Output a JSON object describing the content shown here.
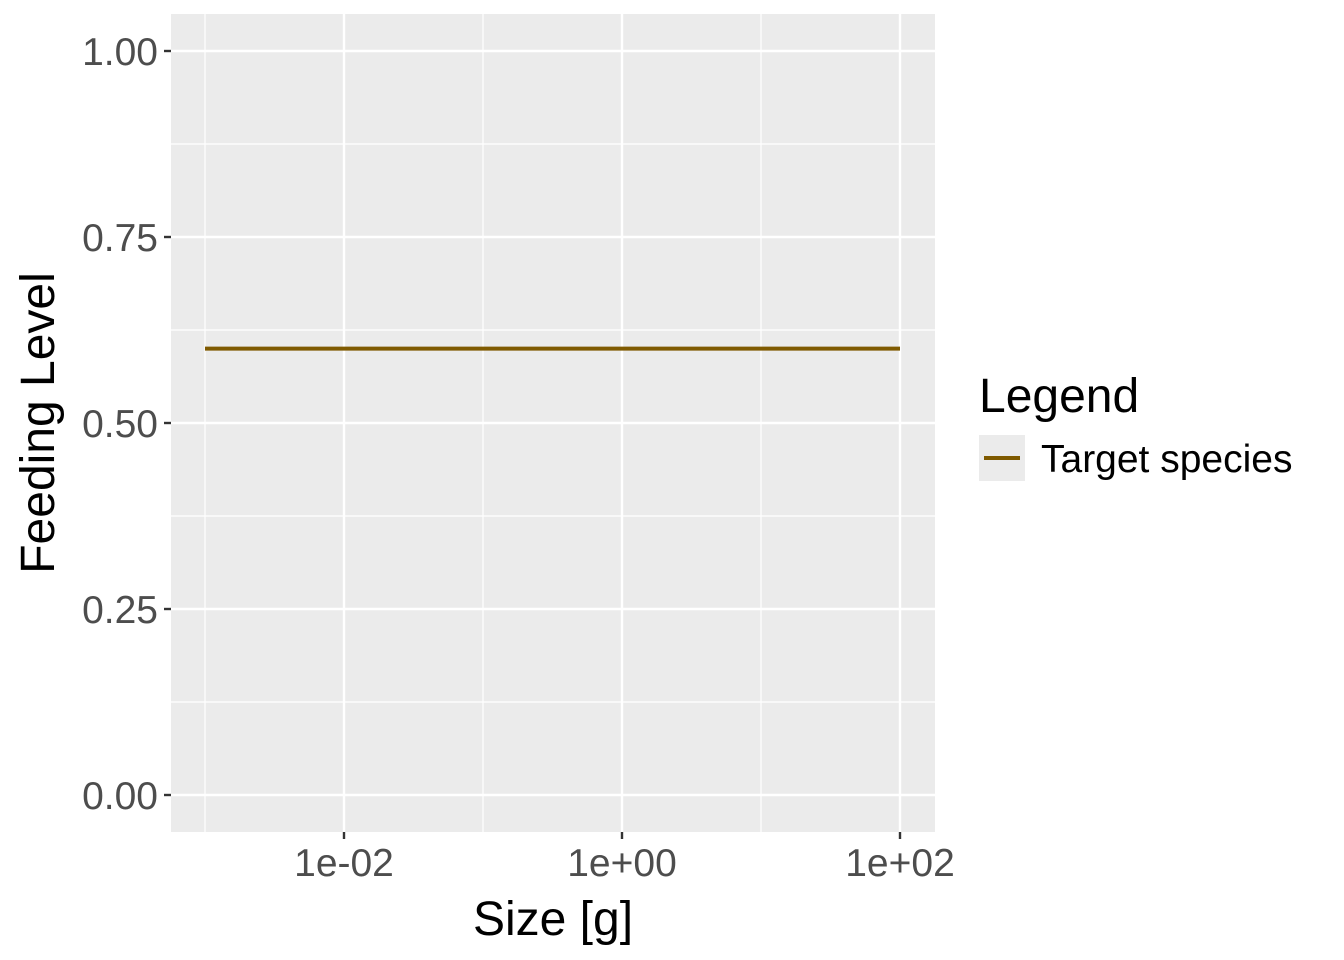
{
  "chart_data": {
    "type": "line",
    "xlabel": "Size [g]",
    "ylabel": "Feeding Level",
    "x_scale": "log10",
    "xlim": [
      0.001,
      100
    ],
    "ylim": [
      0,
      1
    ],
    "x_ticks": [
      0.01,
      1,
      100
    ],
    "x_tick_labels": [
      "1e-02",
      "1e+00",
      "1e+02"
    ],
    "y_ticks": [
      0,
      0.25,
      0.5,
      0.75,
      1
    ],
    "y_tick_labels": [
      "0.00",
      "0.25",
      "0.50",
      "0.75",
      "1.00"
    ],
    "grid": true,
    "series": [
      {
        "name": "Target species",
        "color": "#7f5a00",
        "x": [
          0.001,
          0.01,
          0.1,
          1,
          10,
          100
        ],
        "y": [
          0.6,
          0.6,
          0.6,
          0.6,
          0.6,
          0.6
        ]
      }
    ],
    "legend": {
      "title": "Legend",
      "position": "right"
    },
    "colors": {
      "panel_background": "#ebebeb",
      "grid_line": "#ffffff",
      "tick_text": "#4d4d4d"
    }
  }
}
